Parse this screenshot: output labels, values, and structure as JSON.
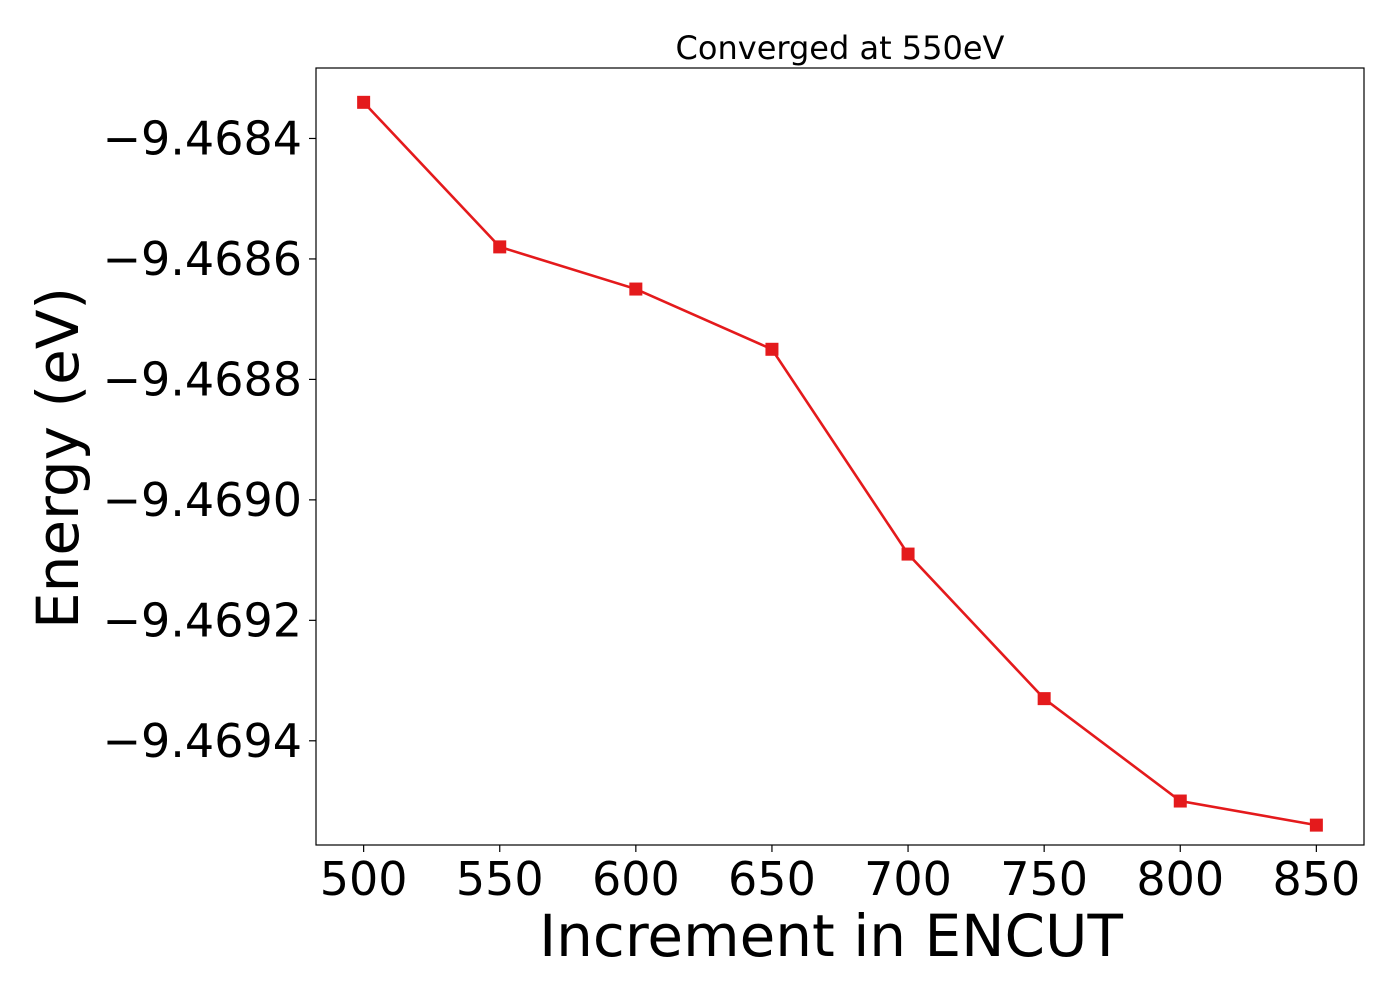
{
  "chart_data": {
    "type": "line",
    "title": "Converged at 550eV",
    "xlabel": "Increment in ENCUT",
    "ylabel": "Energy (eV)",
    "x": [
      500,
      550,
      600,
      650,
      700,
      750,
      800,
      850
    ],
    "series": [
      {
        "values": [
          -9.46834,
          -9.46858,
          -9.46865,
          -9.46875,
          -9.46909,
          -9.46933,
          -9.4695,
          -9.46954
        ],
        "color": "#e41a1c",
        "marker": "square"
      }
    ],
    "xticks": [
      500,
      550,
      600,
      650,
      700,
      750,
      800,
      850
    ],
    "xtick_labels": [
      "500",
      "550",
      "600",
      "650",
      "700",
      "750",
      "800",
      "850"
    ],
    "yticks": [
      -9.4684,
      -9.4686,
      -9.4688,
      -9.469,
      -9.4692,
      -9.4694
    ],
    "ytick_labels": [
      "−9.4684",
      "−9.4686",
      "−9.4688",
      "−9.4690",
      "−9.4692",
      "−9.4694"
    ],
    "xlim": [
      482.5,
      867.5
    ],
    "ylim": [
      -9.469573,
      -9.468283
    ],
    "grid": false,
    "legend": "none"
  }
}
